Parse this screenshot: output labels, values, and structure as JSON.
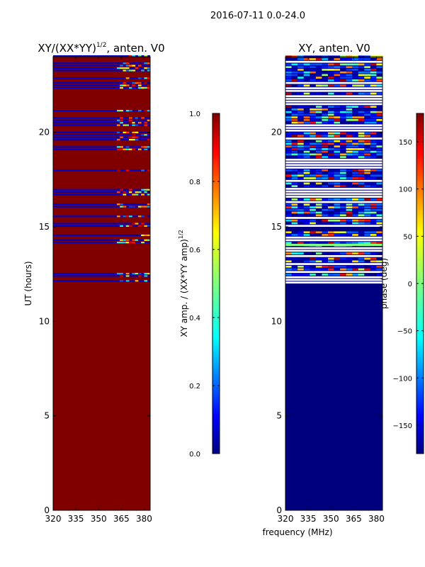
{
  "figure": {
    "suptitle": "2016-07-11 0.0-24.0",
    "xlabel_shared": "frequency (MHz)"
  },
  "colors": {
    "background": "#ffffff",
    "heat_high": "#800000",
    "heat_low": "#00007f",
    "jet": [
      "#00007f",
      "#0000ff",
      "#007fff",
      "#00ffff",
      "#7fff7f",
      "#ffff00",
      "#ff7f00",
      "#ff0000",
      "#7f0000"
    ]
  },
  "chart_data": [
    {
      "type": "heatmap",
      "title_main": "XY/(XX*YY)",
      "title_exp": "1/2",
      "title_suffix": ", anten. V0",
      "xlabel": "",
      "ylabel": "UT (hours)",
      "xlim": [
        320,
        384
      ],
      "ylim": [
        0,
        24
      ],
      "x_ticks": [
        320,
        335,
        350,
        365,
        380
      ],
      "y_ticks": [
        0,
        5,
        10,
        15,
        20
      ],
      "colorbar": {
        "label_main": "XY amp. / (XX*YY amp)",
        "label_exp": "1/2",
        "range": [
          0.0,
          1.0
        ],
        "ticks": [
          "0.0",
          "0.2",
          "0.4",
          "0.6",
          "0.8",
          "1.0"
        ],
        "tick_values": [
          0.0,
          0.2,
          0.4,
          0.6,
          0.8,
          1.0
        ]
      },
      "dominant_value": "~1.0 (saturated) over most of the day",
      "flagged_bands_hours": [
        [
          12.1,
          12.6
        ],
        [
          14.0,
          14.6
        ],
        [
          15.0,
          18.1
        ],
        [
          18.8,
          21.2
        ],
        [
          21.8,
          23.0
        ],
        [
          23.1,
          24.0
        ]
      ],
      "high_variability_freq_MHz": [
        362,
        383
      ]
    },
    {
      "type": "heatmap",
      "title_main": "XY, anten. V0",
      "xlabel": "frequency (MHz)",
      "ylabel": "",
      "xlim": [
        320,
        384
      ],
      "ylim": [
        0,
        24
      ],
      "x_ticks": [
        320,
        335,
        350,
        365,
        380
      ],
      "y_ticks": [
        0,
        5,
        10,
        15,
        20
      ],
      "colorbar": {
        "label_main": "phase (deg)",
        "range": [
          -180,
          180
        ],
        "ticks": [
          "−150",
          "−100",
          "−50",
          "0",
          "50",
          "100",
          "150"
        ],
        "tick_values": [
          -150,
          -100,
          -50,
          0,
          50,
          100,
          150
        ]
      },
      "dominant_value": "~ -180 deg from 0 to 12 h",
      "active_bands_hours": [
        [
          12.0,
          14.8
        ],
        [
          15.0,
          24.0
        ]
      ]
    }
  ]
}
